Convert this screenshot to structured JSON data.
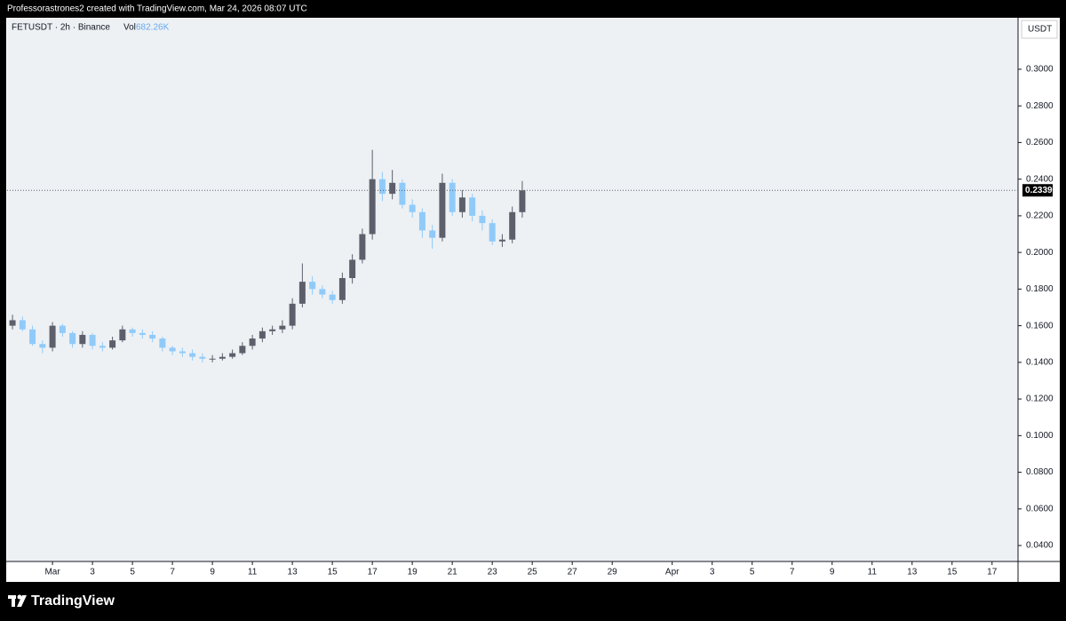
{
  "header": "Professorastrones2 created with TradingView.com, Mar 24, 2026 08:07 UTC",
  "footer": {
    "brand": "TradingView"
  },
  "chart_data": {
    "type": "candlestick",
    "title": "FETUSDT · 2h · Binance",
    "volume_label": "Vol",
    "volume": {
      "value": 682260,
      "label": "682.26K"
    },
    "currency": "USDT",
    "last_price": 0.2339,
    "up_color": "#5d606b",
    "down_color": "#90caf9",
    "xlim": [
      -2.27,
      48.3
    ],
    "xticks": [
      {
        "value": 0,
        "label": "Mar"
      },
      {
        "value": 2,
        "label": "3"
      },
      {
        "value": 4,
        "label": "5"
      },
      {
        "value": 6,
        "label": "7"
      },
      {
        "value": 8,
        "label": "9"
      },
      {
        "value": 10,
        "label": "11"
      },
      {
        "value": 12,
        "label": "13"
      },
      {
        "value": 14,
        "label": "15"
      },
      {
        "value": 16,
        "label": "17"
      },
      {
        "value": 18,
        "label": "19"
      },
      {
        "value": 20,
        "label": "21"
      },
      {
        "value": 22,
        "label": "23"
      },
      {
        "value": 24,
        "label": "25"
      },
      {
        "value": 26,
        "label": "27"
      },
      {
        "value": 28,
        "label": "29"
      },
      {
        "value": 31,
        "label": "Apr"
      },
      {
        "value": 33,
        "label": "3"
      },
      {
        "value": 35,
        "label": "5"
      },
      {
        "value": 37,
        "label": "7"
      },
      {
        "value": 39,
        "label": "9"
      },
      {
        "value": 41,
        "label": "11"
      },
      {
        "value": 43,
        "label": "13"
      },
      {
        "value": 45,
        "label": "15"
      },
      {
        "value": 47,
        "label": "17"
      }
    ],
    "ylim": [
      0.0313,
      0.3281
    ],
    "yticks": [
      {
        "value": 0.04,
        "label": "0.0400"
      },
      {
        "value": 0.06,
        "label": "0.0600"
      },
      {
        "value": 0.08,
        "label": "0.0800"
      },
      {
        "value": 0.1,
        "label": "0.1000"
      },
      {
        "value": 0.12,
        "label": "0.1200"
      },
      {
        "value": 0.14,
        "label": "0.1400"
      },
      {
        "value": 0.16,
        "label": "0.1600"
      },
      {
        "value": 0.18,
        "label": "0.1800"
      },
      {
        "value": 0.2,
        "label": "0.2000"
      },
      {
        "value": 0.22,
        "label": "0.2200"
      },
      {
        "value": 0.24,
        "label": "0.2400"
      },
      {
        "value": 0.26,
        "label": "0.2600"
      },
      {
        "value": 0.28,
        "label": "0.2800"
      },
      {
        "value": 0.3,
        "label": "0.3000"
      }
    ],
    "x": [
      -2.0,
      -1.5,
      -1.0,
      -0.5,
      0.0,
      0.5,
      1.0,
      1.5,
      2.0,
      2.5,
      3.0,
      3.5,
      4.0,
      4.5,
      5.0,
      5.5,
      6.0,
      6.5,
      7.0,
      7.5,
      8.0,
      8.5,
      9.0,
      9.5,
      10.0,
      10.5,
      11.0,
      11.5,
      12.0,
      12.5,
      13.0,
      13.5,
      14.0,
      14.5,
      15.0,
      15.5,
      16.0,
      16.5,
      17.0,
      17.5,
      18.0,
      18.5,
      19.0,
      19.5,
      20.0,
      20.5,
      21.0,
      21.5,
      22.0,
      22.5,
      23.0,
      23.5
    ],
    "open": [
      0.16,
      0.163,
      0.158,
      0.15,
      0.148,
      0.16,
      0.156,
      0.15,
      0.155,
      0.149,
      0.148,
      0.152,
      0.158,
      0.156,
      0.155,
      0.153,
      0.148,
      0.146,
      0.145,
      0.143,
      0.142,
      0.142,
      0.143,
      0.145,
      0.149,
      0.153,
      0.157,
      0.158,
      0.16,
      0.172,
      0.184,
      0.18,
      0.177,
      0.174,
      0.186,
      0.196,
      0.21,
      0.24,
      0.232,
      0.238,
      0.226,
      0.222,
      0.212,
      0.208,
      0.238,
      0.222,
      0.23,
      0.22,
      0.216,
      0.206,
      0.207,
      0.222
    ],
    "high": [
      0.166,
      0.165,
      0.16,
      0.152,
      0.162,
      0.161,
      0.157,
      0.157,
      0.156,
      0.151,
      0.154,
      0.16,
      0.159,
      0.158,
      0.157,
      0.154,
      0.149,
      0.148,
      0.147,
      0.145,
      0.144,
      0.145,
      0.147,
      0.151,
      0.155,
      0.159,
      0.16,
      0.163,
      0.175,
      0.194,
      0.187,
      0.182,
      0.179,
      0.189,
      0.199,
      0.213,
      0.256,
      0.244,
      0.245,
      0.24,
      0.229,
      0.224,
      0.215,
      0.243,
      0.24,
      0.234,
      0.232,
      0.223,
      0.218,
      0.21,
      0.225,
      0.239
    ],
    "low": [
      0.158,
      0.157,
      0.149,
      0.145,
      0.146,
      0.154,
      0.148,
      0.148,
      0.147,
      0.146,
      0.147,
      0.151,
      0.154,
      0.153,
      0.151,
      0.146,
      0.144,
      0.143,
      0.141,
      0.14,
      0.14,
      0.141,
      0.142,
      0.144,
      0.147,
      0.151,
      0.155,
      0.156,
      0.158,
      0.17,
      0.177,
      0.175,
      0.172,
      0.172,
      0.183,
      0.194,
      0.207,
      0.228,
      0.229,
      0.224,
      0.219,
      0.208,
      0.202,
      0.206,
      0.22,
      0.219,
      0.217,
      0.212,
      0.204,
      0.203,
      0.205,
      0.219
    ],
    "close": [
      0.163,
      0.158,
      0.15,
      0.148,
      0.16,
      0.156,
      0.15,
      0.155,
      0.149,
      0.148,
      0.152,
      0.158,
      0.156,
      0.155,
      0.153,
      0.148,
      0.146,
      0.145,
      0.143,
      0.142,
      0.142,
      0.143,
      0.145,
      0.149,
      0.153,
      0.157,
      0.158,
      0.16,
      0.172,
      0.184,
      0.18,
      0.177,
      0.174,
      0.186,
      0.196,
      0.21,
      0.24,
      0.232,
      0.238,
      0.226,
      0.222,
      0.212,
      0.208,
      0.238,
      0.222,
      0.23,
      0.22,
      0.216,
      0.206,
      0.207,
      0.222,
      0.2339
    ]
  }
}
